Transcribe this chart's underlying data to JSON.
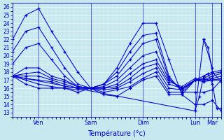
{
  "xlabel": "Température (°c)",
  "bg_color": "#c8e8f0",
  "line_color": "#0000cc",
  "marker": "+",
  "ylim": [
    12.5,
    26.5
  ],
  "yticks": [
    13,
    14,
    15,
    16,
    17,
    18,
    19,
    20,
    21,
    22,
    23,
    24,
    25,
    26
  ],
  "xlim": [
    0,
    48
  ],
  "xtick_pos": [
    6,
    18,
    30,
    42,
    46
  ],
  "xtick_labels": [
    "Ven",
    "Sam",
    "Dim",
    "Lun",
    "Mar"
  ],
  "vlines": [
    6,
    18,
    30,
    42,
    46
  ],
  "lines": [
    {
      "x": [
        0,
        3,
        6,
        9,
        12,
        15,
        18,
        21,
        24,
        27,
        30,
        33,
        36,
        39,
        42,
        44,
        46,
        48
      ],
      "y": [
        22.0,
        25.0,
        25.8,
        23.0,
        20.5,
        18.0,
        16.0,
        16.5,
        18.5,
        21.5,
        24.0,
        24.0,
        19.5,
        15.2,
        17.0,
        17.5,
        18.0,
        18.2
      ]
    },
    {
      "x": [
        0,
        3,
        6,
        9,
        12,
        15,
        18,
        21,
        24,
        27,
        30,
        33,
        36,
        39,
        42,
        44,
        46,
        48
      ],
      "y": [
        20.5,
        23.0,
        23.5,
        21.0,
        18.5,
        16.5,
        16.0,
        16.5,
        18.0,
        20.5,
        22.5,
        22.8,
        17.5,
        15.5,
        17.0,
        17.2,
        17.8,
        18.0
      ]
    },
    {
      "x": [
        0,
        3,
        6,
        9,
        12,
        15,
        18,
        21,
        24,
        27,
        30,
        33,
        36,
        39,
        42,
        44,
        46,
        48
      ],
      "y": [
        19.0,
        21.0,
        21.5,
        19.5,
        17.5,
        16.2,
        16.0,
        16.5,
        17.5,
        19.5,
        21.5,
        22.0,
        17.2,
        15.8,
        17.0,
        17.0,
        17.5,
        17.8
      ]
    },
    {
      "x": [
        0,
        3,
        6,
        9,
        12,
        15,
        18,
        21,
        24,
        27,
        30,
        33,
        36,
        39,
        42,
        44,
        46,
        48
      ],
      "y": [
        17.5,
        18.5,
        18.5,
        17.5,
        17.0,
        16.2,
        16.0,
        16.2,
        17.0,
        18.5,
        20.0,
        20.5,
        17.0,
        16.0,
        17.0,
        17.0,
        17.2,
        17.5
      ]
    },
    {
      "x": [
        0,
        3,
        6,
        9,
        12,
        15,
        18,
        21,
        24,
        27,
        30,
        33,
        36,
        39,
        42,
        44,
        46,
        48
      ],
      "y": [
        17.5,
        17.8,
        18.0,
        17.2,
        16.8,
        16.2,
        16.0,
        16.0,
        16.5,
        17.8,
        19.0,
        19.5,
        16.8,
        16.2,
        17.2,
        17.0,
        17.0,
        17.2
      ]
    },
    {
      "x": [
        0,
        3,
        6,
        9,
        12,
        15,
        18,
        21,
        24,
        27,
        30,
        33,
        36,
        39,
        42,
        44,
        46,
        48
      ],
      "y": [
        17.5,
        17.5,
        17.5,
        17.0,
        16.5,
        16.0,
        16.0,
        16.0,
        16.2,
        17.2,
        18.5,
        19.0,
        16.5,
        16.0,
        17.0,
        17.0,
        17.0,
        17.0
      ]
    },
    {
      "x": [
        0,
        3,
        6,
        9,
        12,
        15,
        18,
        21,
        24,
        27,
        30,
        33,
        36,
        39,
        42,
        44,
        46,
        48
      ],
      "y": [
        17.5,
        17.2,
        17.0,
        16.8,
        16.2,
        16.0,
        16.0,
        15.8,
        16.0,
        16.8,
        17.8,
        18.5,
        16.0,
        15.8,
        17.0,
        16.8,
        17.0,
        17.0
      ]
    },
    {
      "x": [
        0,
        3,
        6,
        9,
        12,
        15,
        18,
        21,
        24,
        27,
        30,
        33,
        36,
        39,
        42,
        44,
        46,
        48
      ],
      "y": [
        17.5,
        17.0,
        16.5,
        16.2,
        16.0,
        15.8,
        16.0,
        15.5,
        15.8,
        16.2,
        17.2,
        18.0,
        15.5,
        15.5,
        15.5,
        15.5,
        15.8,
        17.0
      ]
    },
    {
      "x": [
        0,
        3,
        6,
        9,
        12,
        15,
        18,
        21,
        24,
        27,
        30,
        33,
        36,
        39,
        42,
        44,
        46,
        48
      ],
      "y": [
        17.5,
        16.5,
        16.0,
        16.0,
        16.0,
        15.5,
        16.0,
        15.2,
        15.0,
        16.0,
        17.0,
        17.5,
        15.2,
        15.2,
        14.0,
        14.0,
        14.5,
        13.2
      ]
    },
    {
      "x": [
        0,
        42,
        44,
        46
      ],
      "y": [
        17.5,
        13.2,
        22.0,
        18.5
      ]
    },
    {
      "x": [
        42,
        43,
        44,
        45,
        46,
        47,
        48
      ],
      "y": [
        13.2,
        15.0,
        17.5,
        17.8,
        16.5,
        13.5,
        13.5
      ]
    },
    {
      "x": [
        44,
        45,
        46,
        48
      ],
      "y": [
        22.0,
        21.0,
        18.0,
        16.8
      ]
    }
  ]
}
